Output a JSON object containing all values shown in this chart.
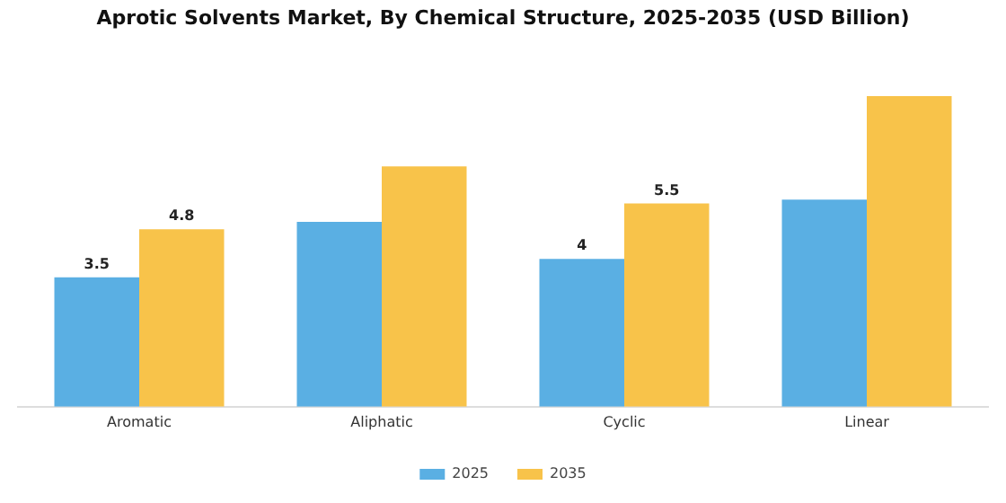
{
  "chart_data": {
    "type": "bar",
    "title": "Aprotic Solvents Market, By Chemical Structure, 2025-2035 (USD Billion)",
    "categories": [
      "Aromatic",
      "Aliphatic",
      "Cyclic",
      "Linear"
    ],
    "series": [
      {
        "name": "2025",
        "color": "#5aafe3",
        "values": [
          3.5,
          5.0,
          4,
          5.6
        ],
        "value_labels": [
          "3.5",
          null,
          "4",
          null
        ]
      },
      {
        "name": "2035",
        "color": "#f8c34a",
        "values": [
          4.8,
          6.5,
          5.5,
          8.4
        ],
        "value_labels": [
          "4.8",
          null,
          "5.5",
          null
        ]
      }
    ],
    "grid": false,
    "legend": "bottom",
    "tick_labels": "x"
  }
}
